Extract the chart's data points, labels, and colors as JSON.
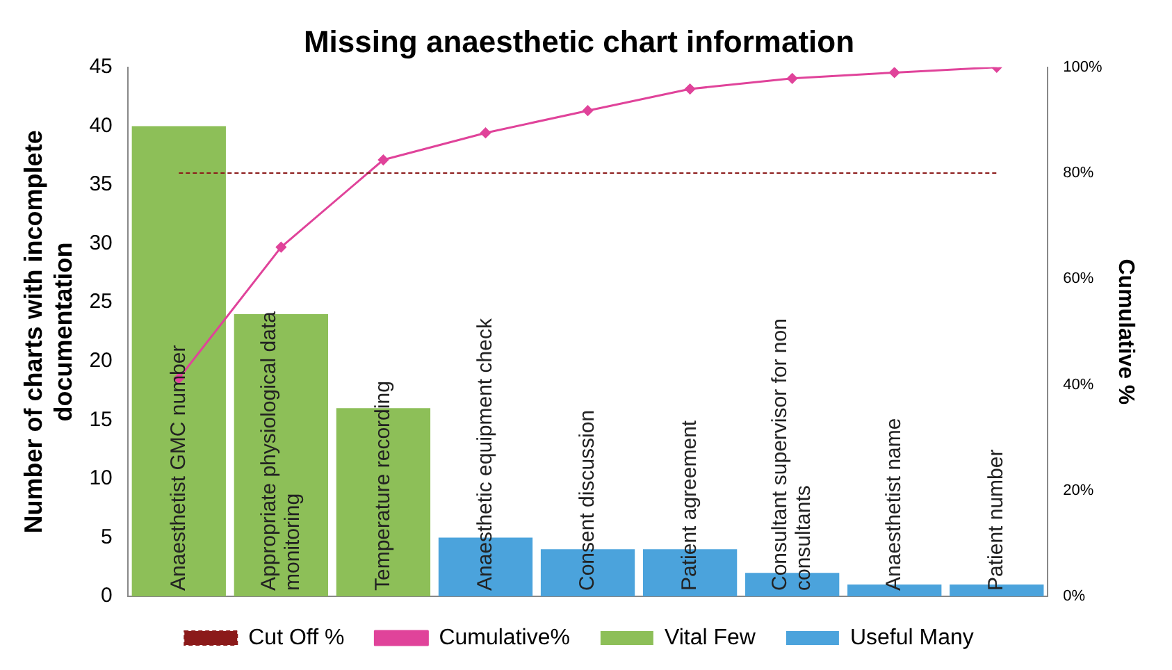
{
  "chart_data": {
    "type": "bar",
    "title": "Missing anaesthetic chart information",
    "ylabel": "Number of charts with incomplete documentation",
    "y2label": "Cumulative %",
    "categories": [
      "Anaesthetist GMC number",
      "Appropriate physiological data monitoring",
      "Temperature recording",
      "Anaesthetic equipment check",
      "Consent discussion",
      "Patient agreement",
      "Consultant supervisor for non consultants",
      "Anaesthetist name",
      "Patient number"
    ],
    "series": [
      {
        "name": "Vital Few",
        "color": "#8dbf58",
        "values": [
          40,
          24,
          16,
          null,
          null,
          null,
          null,
          null,
          null
        ]
      },
      {
        "name": "Useful Many",
        "color": "#4ba3dc",
        "values": [
          null,
          null,
          null,
          5,
          4,
          4,
          2,
          1,
          1
        ]
      },
      {
        "name": "Cumulative%",
        "type": "line",
        "axis": "y2",
        "color": "#e0439a",
        "marker": "diamond",
        "values": [
          41.2,
          66.0,
          82.5,
          87.6,
          91.8,
          95.9,
          97.9,
          99.0,
          100
        ]
      }
    ],
    "ref_lines": [
      {
        "axis": "y2",
        "value": 80,
        "label": "Cut Off %",
        "color": "#8b1a1a",
        "line_style": "dashed"
      }
    ],
    "ylim": [
      0,
      45
    ],
    "yticks": [
      0,
      5,
      10,
      15,
      20,
      25,
      30,
      35,
      40,
      45
    ],
    "y2lim": [
      0,
      100
    ],
    "y2ticks": [
      {
        "value": 0,
        "label": "0%"
      },
      {
        "value": 20,
        "label": "20%"
      },
      {
        "value": 40,
        "label": "40%"
      },
      {
        "value": 60,
        "label": "60%"
      },
      {
        "value": 80,
        "label": "80%"
      },
      {
        "value": 100,
        "label": "100%"
      }
    ],
    "grid": false,
    "legend": "bottom"
  }
}
